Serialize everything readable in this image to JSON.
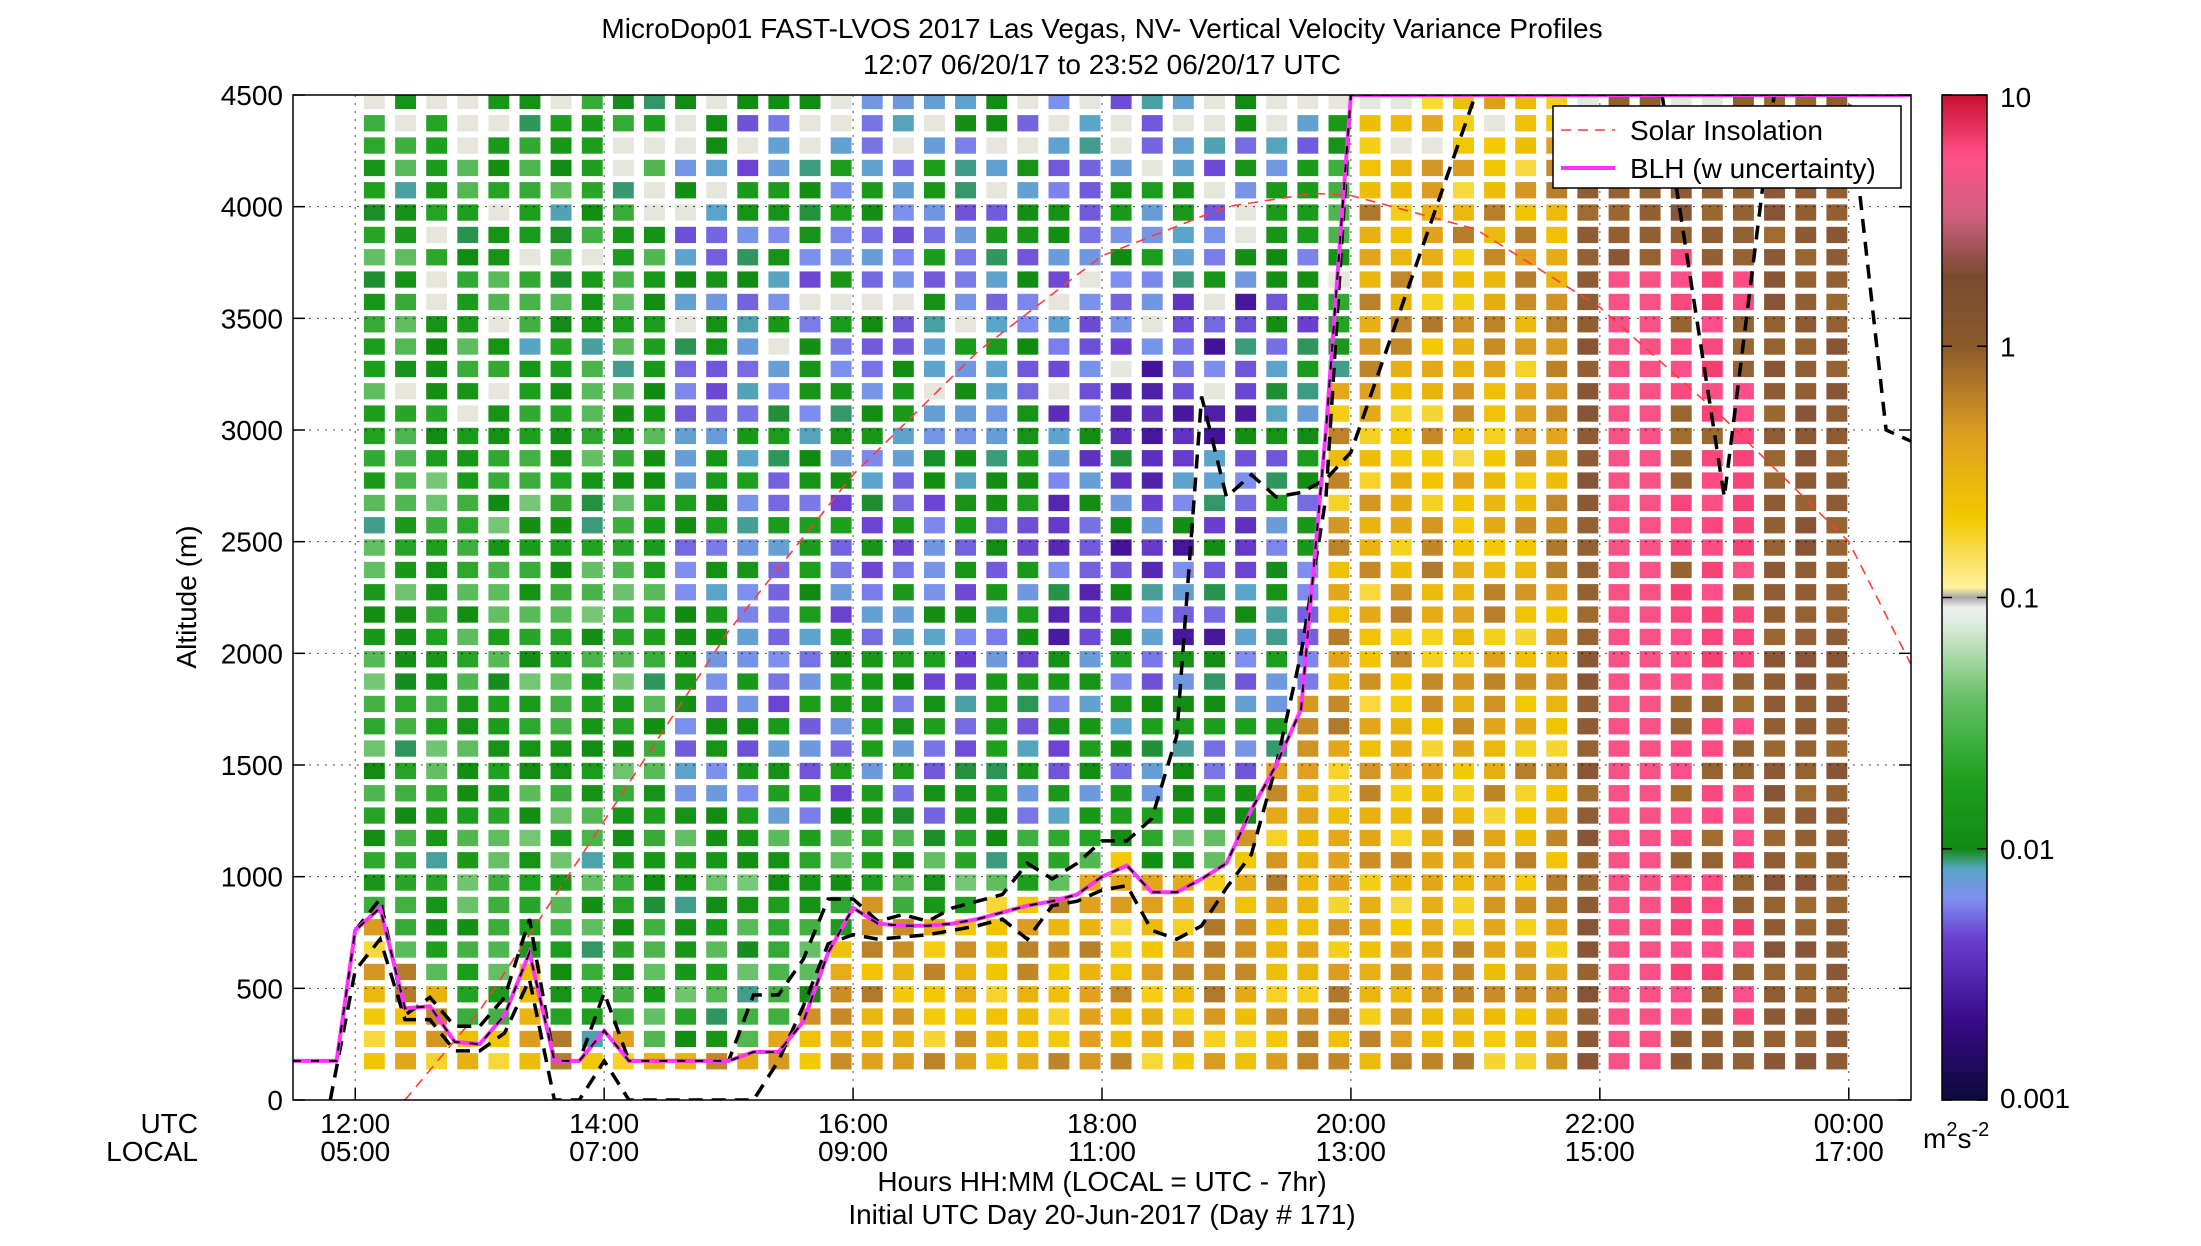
{
  "chart_data": {
    "type": "heatmap",
    "title": "MicroDop01 FAST-LVOS 2017 Las Vegas, NV- Vertical Velocity Variance Profiles",
    "subtitle": "12:07 06/20/17 to 23:52 06/20/17  UTC",
    "ylabel": "Altitude (m)",
    "xlabel": "Hours HH:MM  (LOCAL = UTC - 7hr)",
    "xlabel2": "Initial UTC Day 20-Jun-2017 (Day # 171)",
    "x_row_labels": [
      "UTC",
      "LOCAL"
    ],
    "xlim_utc_hours": [
      11.5,
      24.5
    ],
    "ylim": [
      0,
      4500
    ],
    "y_ticks": [
      0,
      500,
      1000,
      1500,
      2000,
      2500,
      3000,
      3500,
      4000,
      4500
    ],
    "x_ticks_utc": [
      "12:00",
      "14:00",
      "16:00",
      "18:00",
      "20:00",
      "22:00",
      "00:00"
    ],
    "x_ticks_local": [
      "05:00",
      "07:00",
      "09:00",
      "11:00",
      "13:00",
      "15:00",
      "17:00"
    ],
    "x_tick_hours": [
      12,
      14,
      16,
      18,
      20,
      22,
      24
    ],
    "grid": true,
    "colorbar": {
      "scale": "log",
      "range": [
        0.001,
        10
      ],
      "ticks": [
        10,
        1,
        0.1,
        0.01,
        0.001
      ],
      "tick_labels": [
        "10",
        "1",
        "0.1",
        "0.01",
        "0.001"
      ],
      "unit_base": "m",
      "unit_sup1": "2",
      "unit_mid": "s",
      "unit_sup2": "-2"
    },
    "legend": {
      "placement": "top-right",
      "entries": [
        {
          "label": "Solar Insolation",
          "color": "#ff3b3b",
          "style": "dashed"
        },
        {
          "label": "BLH (w uncertainty)",
          "color": "#ff33ff",
          "style": "solid"
        }
      ]
    },
    "series": [
      {
        "name": "BLH (w uncertainty)",
        "color": "#ff33ff",
        "x": [
          11.5,
          11.85,
          12.0,
          12.2,
          12.4,
          12.6,
          12.8,
          13.0,
          13.2,
          13.4,
          13.6,
          13.8,
          14.0,
          14.2,
          14.4,
          14.6,
          14.8,
          15.0,
          15.2,
          15.4,
          15.6,
          15.8,
          16.0,
          16.2,
          16.4,
          16.6,
          16.8,
          17.0,
          17.2,
          17.4,
          17.6,
          17.8,
          18.0,
          18.2,
          18.4,
          18.6,
          18.8,
          19.0,
          19.2,
          19.4,
          19.6,
          19.8,
          20.0,
          20.2,
          20.4,
          20.6,
          20.8,
          21.0,
          21.2,
          21.35,
          21.5,
          21.7,
          21.75,
          22.0,
          24.0,
          24.5
        ],
        "y": [
          175,
          175,
          760,
          860,
          410,
          420,
          260,
          250,
          380,
          660,
          175,
          175,
          310,
          175,
          175,
          175,
          175,
          175,
          215,
          215,
          350,
          660,
          860,
          790,
          780,
          780,
          790,
          810,
          840,
          870,
          890,
          920,
          1000,
          1050,
          930,
          930,
          990,
          1060,
          1300,
          1500,
          1750,
          3000,
          4500,
          4500,
          4500,
          4500,
          4500,
          4500,
          4500,
          4500,
          4500,
          4500,
          4500,
          4500,
          4500,
          4500
        ]
      }
    ],
    "solar_insolation_curve": {
      "x": [
        12.4,
        13.0,
        14.0,
        15.0,
        16.0,
        17.0,
        18.0,
        19.0,
        19.7,
        20.0,
        21.0,
        22.0,
        23.0,
        24.0,
        24.5
      ],
      "y": [
        0,
        400,
        1250,
        2100,
        2800,
        3350,
        3780,
        4000,
        4060,
        4050,
        3900,
        3550,
        3050,
        2500,
        1950
      ]
    },
    "blh_uncertainty_upper": {
      "x": [
        12.0,
        12.2,
        12.4,
        12.6,
        12.8,
        13.0,
        13.2,
        13.4,
        13.6,
        13.8,
        14.0,
        14.2,
        14.4,
        14.6,
        14.8,
        15.0,
        15.2,
        15.4,
        15.6,
        15.8,
        16.0,
        16.2,
        16.4,
        16.6,
        16.8,
        17.0,
        17.2,
        17.4,
        17.6,
        17.8,
        18.0,
        18.2,
        18.4,
        18.6,
        18.8,
        19.0,
        19.2,
        19.4,
        19.6,
        19.8,
        20.0,
        21.0,
        21.3,
        22.0,
        22.5,
        23.0,
        23.4,
        23.6,
        23.8,
        24.0,
        24.3,
        24.5
      ],
      "y": [
        760,
        900,
        380,
        460,
        330,
        330,
        460,
        810,
        175,
        175,
        480,
        175,
        175,
        175,
        175,
        175,
        470,
        470,
        630,
        900,
        900,
        800,
        830,
        800,
        860,
        890,
        920,
        1060,
        990,
        1060,
        1160,
        1160,
        1260,
        1630,
        3150,
        2700,
        2800,
        2700,
        2720,
        2780,
        2900,
        4500,
        4500,
        4500,
        4500,
        2700,
        4500,
        4500,
        4500,
        4500,
        3000,
        2950
      ]
    },
    "blh_uncertainty_lower": {
      "x": [
        11.8,
        12.0,
        12.2,
        12.4,
        12.6,
        12.8,
        13.0,
        13.2,
        13.4,
        13.6,
        13.8,
        14.0,
        14.2,
        14.4,
        14.6,
        14.8,
        15.0,
        15.2,
        15.4,
        15.6,
        15.8,
        16.0,
        16.2,
        16.4,
        16.6,
        16.8,
        17.0,
        17.2,
        17.4,
        17.6,
        17.8,
        18.0,
        18.2,
        18.4,
        18.6,
        18.8,
        19.0,
        19.2,
        19.4,
        19.6,
        19.8,
        20.0,
        21.0
      ],
      "y": [
        0,
        580,
        720,
        360,
        360,
        220,
        220,
        300,
        540,
        0,
        0,
        175,
        0,
        0,
        0,
        0,
        0,
        0,
        175,
        420,
        700,
        740,
        720,
        730,
        740,
        760,
        780,
        810,
        720,
        870,
        890,
        940,
        960,
        760,
        720,
        780,
        950,
        1100,
        1500,
        2000,
        2700,
        4500,
        4500
      ]
    }
  }
}
